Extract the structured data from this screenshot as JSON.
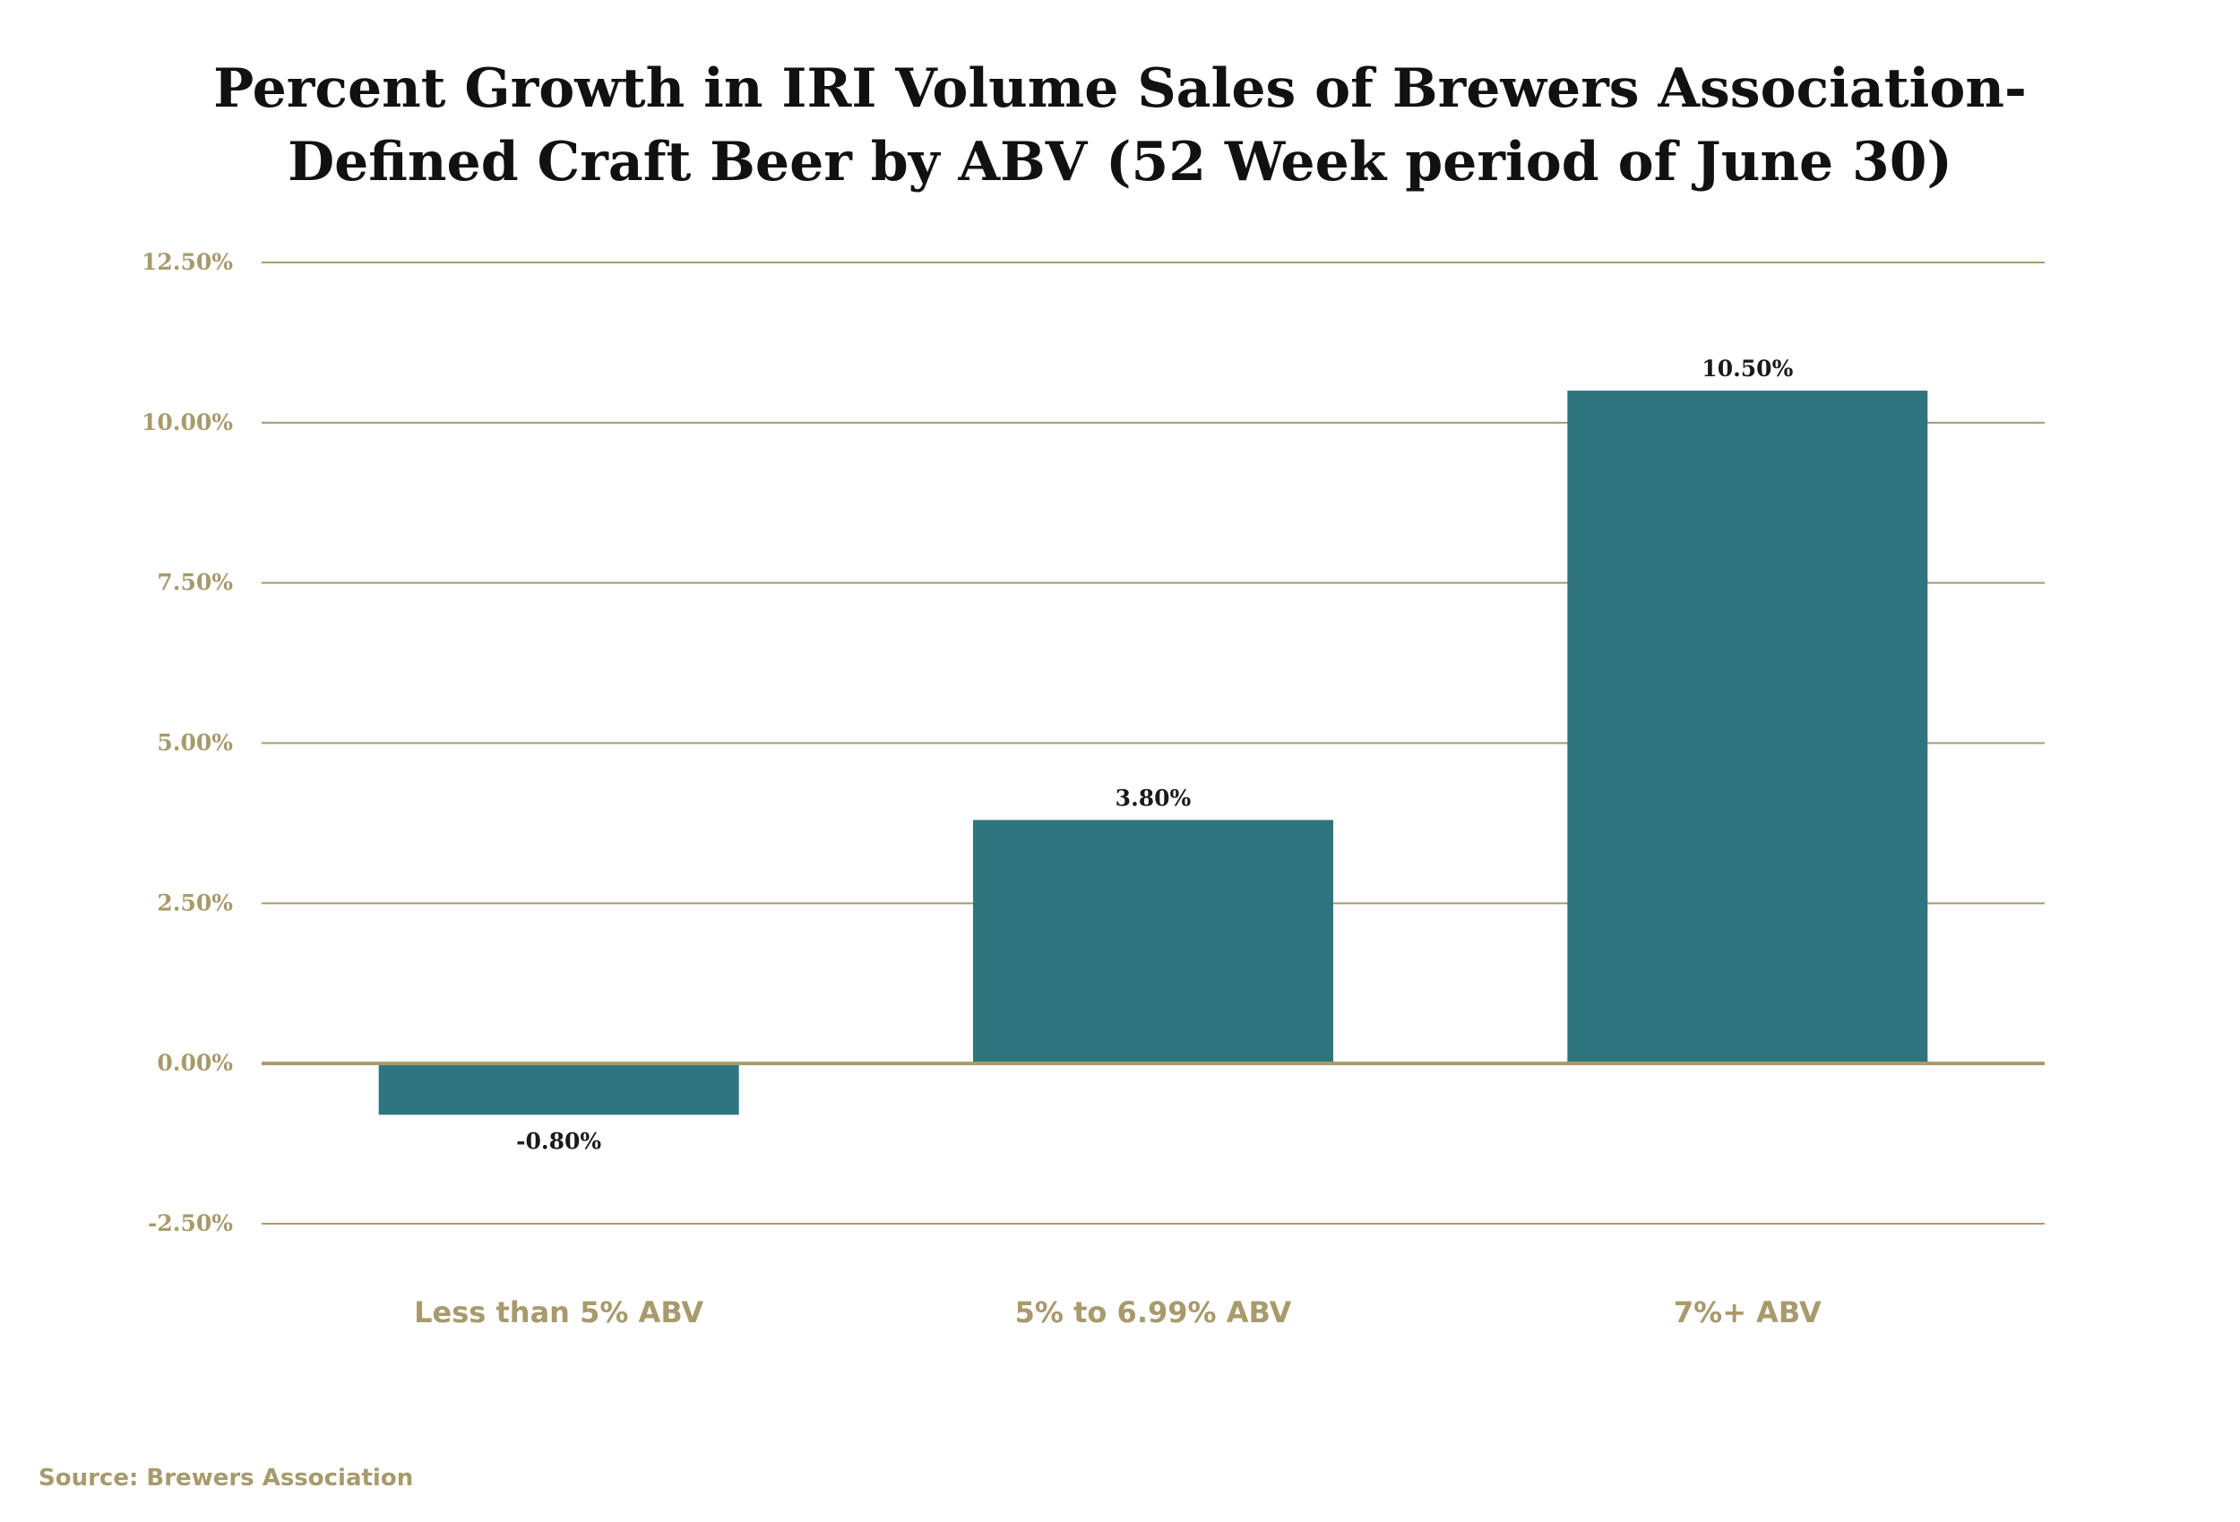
{
  "chart_data": {
    "type": "bar",
    "title_lines": [
      "Percent Growth in IRI Volume Sales of Brewers Association-",
      "Defined Craft Beer by ABV (52 Week period of June 30)"
    ],
    "categories": [
      "Less than 5% ABV",
      "5% to 6.99% ABV",
      "7%+ ABV"
    ],
    "values": [
      -0.8,
      3.8,
      10.5
    ],
    "value_labels": [
      "-0.80%",
      "3.80%",
      "10.50%"
    ],
    "ylim": [
      -2.5,
      12.5
    ],
    "yticks": [
      12.5,
      10.0,
      7.5,
      5.0,
      2.5,
      0.0,
      -2.5
    ],
    "ytick_labels": [
      "12.50%",
      "10.00%",
      "7.50%",
      "5.00%",
      "2.50%",
      "0.00%",
      "-2.50%"
    ],
    "xlabel": "",
    "ylabel": "",
    "grid": true,
    "legend": "none"
  },
  "source": "Source: Brewers Association",
  "colors": {
    "bar": "#2e7580",
    "accent": "#a89a6c",
    "title": "#111111",
    "data_label": "#1a1a1a"
  }
}
